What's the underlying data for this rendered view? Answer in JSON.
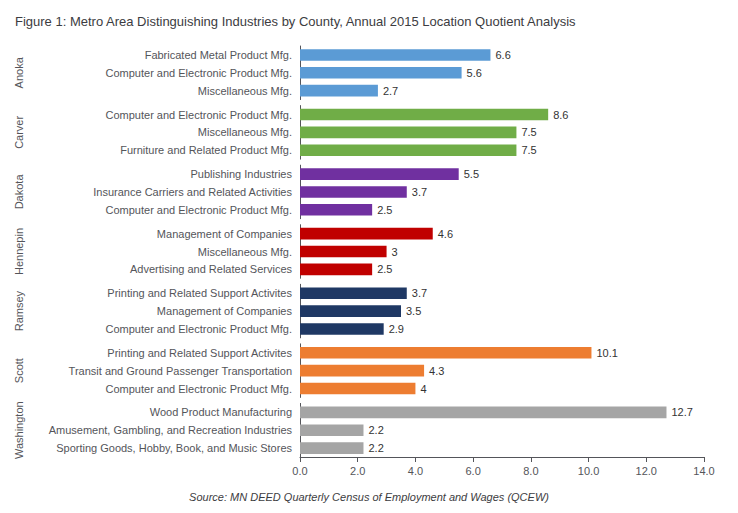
{
  "chart_data": {
    "type": "bar",
    "orientation": "horizontal",
    "title": "Figure 1: Metro Area Distinguishing Industries by County, Annual 2015 Location Quotient Analysis",
    "annotations": [
      "Source: MN DEED Quarterly Census of Employment and Wages (QCEW)"
    ],
    "xlim": [
      0,
      14.0
    ],
    "xticks": [
      {
        "value": 0,
        "label": "0.0"
      },
      {
        "value": 2,
        "label": "2.0"
      },
      {
        "value": 4,
        "label": "4.0"
      },
      {
        "value": 6,
        "label": "6.0"
      },
      {
        "value": 8,
        "label": "8.0"
      },
      {
        "value": 10,
        "label": "10.0"
      },
      {
        "value": 12,
        "label": "12.0"
      },
      {
        "value": 14,
        "label": "14.0"
      }
    ],
    "grid": false,
    "data_labels": true,
    "groups": [
      {
        "name": "Anoka",
        "color": "#5B9BD5",
        "categories": [
          "Fabricated Metal Product Mfg.",
          "Computer and Electronic Product Mfg.",
          "Miscellaneous Mfg."
        ],
        "values": [
          6.6,
          5.6,
          2.7
        ]
      },
      {
        "name": "Carver",
        "color": "#70AD47",
        "categories": [
          "Computer and Electronic Product Mfg.",
          "Miscellaneous Mfg.",
          "Furniture and Related Product Mfg."
        ],
        "values": [
          8.6,
          7.5,
          7.5
        ]
      },
      {
        "name": "Dakota",
        "color": "#7030A0",
        "categories": [
          "Publishing Industries",
          "Insurance Carriers and Related Activities",
          "Computer and Electronic Product Mfg."
        ],
        "values": [
          5.5,
          3.7,
          2.5
        ]
      },
      {
        "name": "Hennepin",
        "color": "#C00000",
        "categories": [
          "Management of Companies",
          "Miscellaneous Mfg.",
          "Advertising and Related Services"
        ],
        "values": [
          4.6,
          3.0,
          2.5
        ]
      },
      {
        "name": "Ramsey",
        "color": "#1F3864",
        "categories": [
          "Printing and Related Support Activites",
          "Management of Companies",
          "Computer and Electronic Product Mfg."
        ],
        "values": [
          3.7,
          3.5,
          2.9
        ]
      },
      {
        "name": "Scott",
        "color": "#ED7D31",
        "categories": [
          "Printing and Related Support Activites",
          "Transit and Ground Passenger Transportation",
          "Computer and Electronic Product Mfg."
        ],
        "values": [
          10.1,
          4.3,
          4.0
        ]
      },
      {
        "name": "Washington",
        "color": "#A5A5A5",
        "categories": [
          "Wood Product Manufacturing",
          "Amusement, Gambling, and Recreation Industries",
          "Sporting Goods, Hobby, Book, and Music Stores"
        ],
        "values": [
          12.7,
          2.2,
          2.2
        ]
      }
    ]
  }
}
